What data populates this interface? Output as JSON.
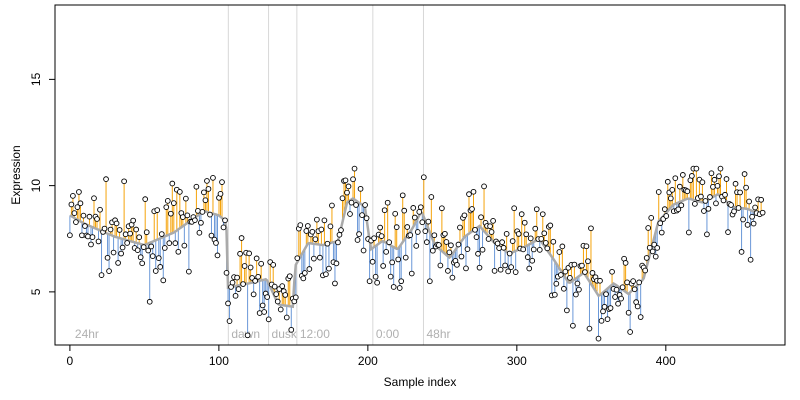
{
  "chart_data": {
    "type": "scatter",
    "xlabel": "Sample index",
    "ylabel": "Expression",
    "xlim": [
      -10,
      480
    ],
    "ylim": [
      2.5,
      18.5
    ],
    "x_ticks": [
      0,
      100,
      200,
      300,
      400
    ],
    "y_ticks": [
      5,
      10,
      15
    ],
    "grid": false,
    "legend": "none",
    "colors": {
      "point_fill": "#ffffff",
      "point_stroke": "#000000",
      "fit_line": "#aaaaaa",
      "residual_above": "#f5a30a",
      "residual_below": "#6a98d8",
      "region_line": "#d8d8d8",
      "region_label": "#b0b0b0"
    },
    "regions": [
      {
        "label": "24hr",
        "x": 0
      },
      {
        "label": "dawn",
        "x": 105
      },
      {
        "label": "dusk",
        "x": 132
      },
      {
        "label": "12:00",
        "x": 151
      },
      {
        "label": "0:00",
        "x": 202
      },
      {
        "label": "48hr",
        "x": 236
      }
    ],
    "trend_knots": {
      "x": [
        0,
        10,
        20,
        30,
        40,
        50,
        60,
        70,
        80,
        90,
        100,
        105,
        106,
        120,
        132,
        140,
        150,
        151,
        160,
        170,
        180,
        186,
        190,
        198,
        202,
        210,
        220,
        230,
        236,
        245,
        255,
        265,
        275,
        285,
        295,
        305,
        315,
        325,
        335,
        345,
        355,
        365,
        375,
        385,
        395,
        405,
        415,
        425,
        435,
        445,
        455,
        465
      ],
      "y": [
        8.6,
        8.2,
        7.9,
        7.6,
        7.4,
        7.2,
        7.5,
        7.8,
        8.3,
        8.8,
        8.6,
        8.3,
        5.2,
        5.4,
        5.6,
        4.4,
        4.3,
        6.2,
        7.3,
        7.2,
        7.4,
        9.2,
        9.4,
        9.0,
        7.0,
        7.4,
        7.0,
        8.0,
        8.8,
        7.2,
        6.6,
        7.6,
        8.1,
        7.3,
        6.8,
        7.1,
        7.5,
        6.5,
        5.4,
        5.9,
        4.8,
        5.4,
        4.9,
        5.6,
        8.3,
        9.1,
        9.4,
        9.2,
        9.6,
        9.0,
        8.9,
        8.6
      ]
    },
    "sampling": {
      "count": 461,
      "x_max": 465
    }
  }
}
